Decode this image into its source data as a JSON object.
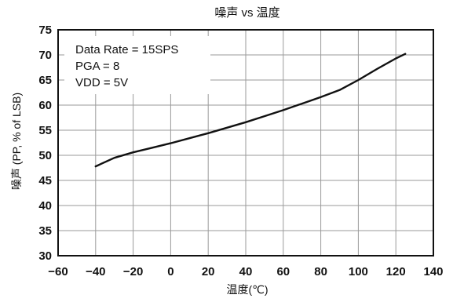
{
  "chart_data": {
    "type": "line",
    "title": "噪声 vs 温度",
    "xlabel": "温度(℃)",
    "ylabel": "噪声 (PP, % of LSB)",
    "xlim": [
      -60,
      140
    ],
    "ylim": [
      30,
      75
    ],
    "xticks": [
      -60,
      -40,
      -20,
      0,
      20,
      40,
      60,
      80,
      100,
      120,
      140
    ],
    "yticks": [
      30,
      35,
      40,
      45,
      50,
      55,
      60,
      65,
      70,
      75
    ],
    "x_tick_labels": [
      "−60",
      "−40",
      "−20",
      "0",
      "20",
      "40",
      "60",
      "80",
      "100",
      "120",
      "140"
    ],
    "y_tick_labels": [
      "30",
      "35",
      "40",
      "45",
      "50",
      "55",
      "60",
      "65",
      "70",
      "75"
    ],
    "grid": true,
    "legend": "none",
    "annotations": [
      "Data Rate = 15SPS",
      "PGA = 8",
      "VDD = 5V"
    ],
    "series": [
      {
        "x": [
          -40,
          -30,
          -20,
          -10,
          0,
          10,
          20,
          30,
          40,
          50,
          60,
          70,
          80,
          90,
          100,
          110,
          120,
          125
        ],
        "y": [
          47.8,
          49.5,
          50.6,
          51.5,
          52.4,
          53.4,
          54.4,
          55.5,
          56.6,
          57.8,
          59.0,
          60.3,
          61.6,
          63.0,
          65.0,
          67.2,
          69.3,
          70.2
        ],
        "color": "#111111"
      }
    ]
  }
}
